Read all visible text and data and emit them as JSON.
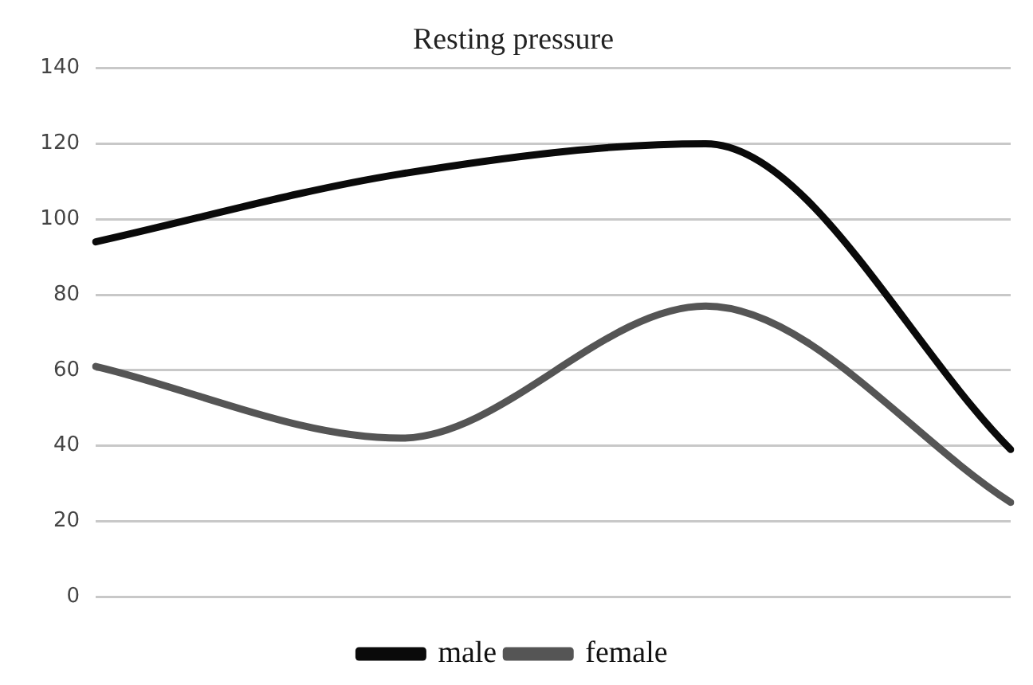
{
  "chart_data": {
    "type": "line",
    "title": "Resting pressure",
    "categories": [
      null,
      null,
      null,
      null
    ],
    "series": [
      {
        "name": "male",
        "color": "#0a0a0a",
        "values": [
          94,
          112,
          120,
          39
        ]
      },
      {
        "name": "female",
        "color": "#555555",
        "values": [
          61,
          42,
          77,
          25
        ]
      }
    ],
    "ylim": [
      0,
      140
    ],
    "yticks": [
      0,
      20,
      40,
      60,
      80,
      100,
      120,
      140
    ],
    "grid": "y",
    "legend": "bottom",
    "marker": "none",
    "line_style": "solid"
  }
}
